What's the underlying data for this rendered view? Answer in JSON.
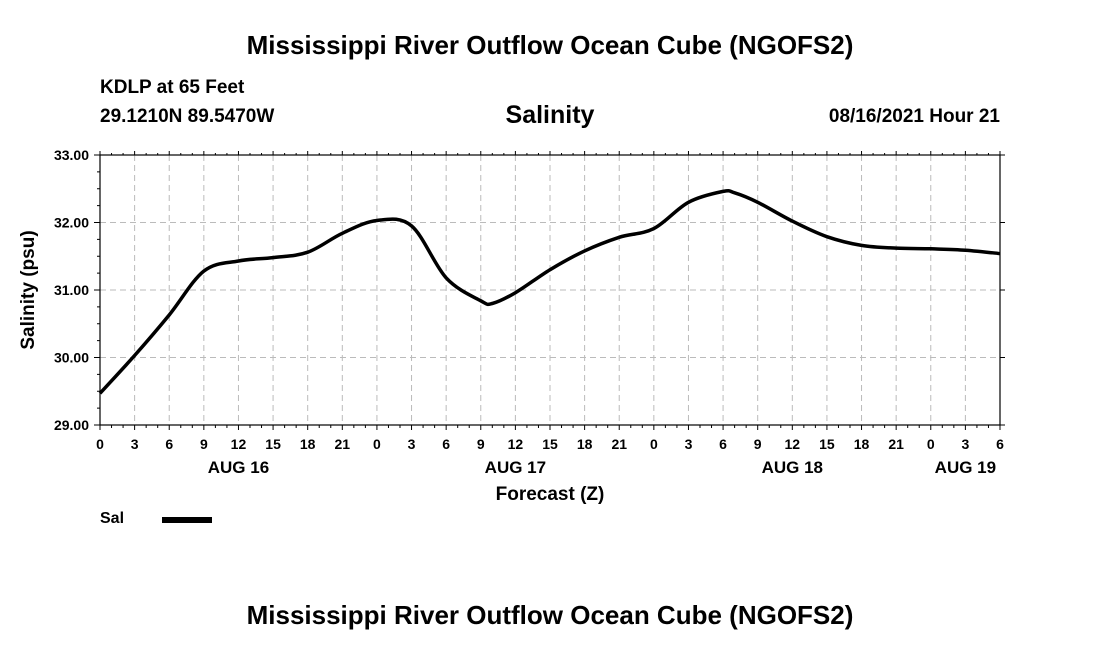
{
  "header": {
    "title_top": "Mississippi River Outflow Ocean Cube (NGOFS2)",
    "station": "KDLP at 65 Feet",
    "coords": "29.1210N  89.5470W",
    "variable": "Salinity",
    "run_time": "08/16/2021 Hour 21",
    "title_bottom": "Mississippi River Outflow Ocean Cube (NGOFS2)"
  },
  "legend": {
    "label": "Sal"
  },
  "chart_data": {
    "type": "line",
    "ylabel": "Salinity (psu)",
    "xlabel": "Forecast (Z)",
    "ylim": [
      29.0,
      33.0
    ],
    "yticks": [
      "29.00",
      "30.00",
      "31.00",
      "32.00",
      "33.00"
    ],
    "xlim_hours": [
      0,
      78
    ],
    "xtick_labels": [
      "0",
      "3",
      "6",
      "9",
      "12",
      "15",
      "18",
      "21",
      "0",
      "3",
      "6",
      "9",
      "12",
      "15",
      "18",
      "21",
      "0",
      "3",
      "6",
      "9",
      "12",
      "15",
      "18",
      "21",
      "0",
      "3",
      "6"
    ],
    "date_labels": [
      {
        "text": "AUG 16",
        "hour": 12
      },
      {
        "text": "AUG 17",
        "hour": 36
      },
      {
        "text": "AUG 18",
        "hour": 60
      },
      {
        "text": "AUG 19",
        "hour": 75
      }
    ],
    "grid": true,
    "series": [
      {
        "name": "Sal",
        "color": "#000000",
        "x": [
          0,
          3,
          6,
          9,
          12,
          15,
          18,
          21,
          24,
          27,
          30,
          33,
          34,
          36,
          39,
          42,
          45,
          48,
          51,
          54,
          55,
          57,
          60,
          63,
          66,
          69,
          72,
          75,
          78
        ],
        "y": [
          29.47,
          30.03,
          30.63,
          31.28,
          31.43,
          31.48,
          31.56,
          31.84,
          32.03,
          31.95,
          31.18,
          30.84,
          30.8,
          30.96,
          31.3,
          31.58,
          31.78,
          31.91,
          32.3,
          32.46,
          32.44,
          32.3,
          32.02,
          31.79,
          31.66,
          31.62,
          31.61,
          31.59,
          31.54
        ]
      }
    ]
  }
}
